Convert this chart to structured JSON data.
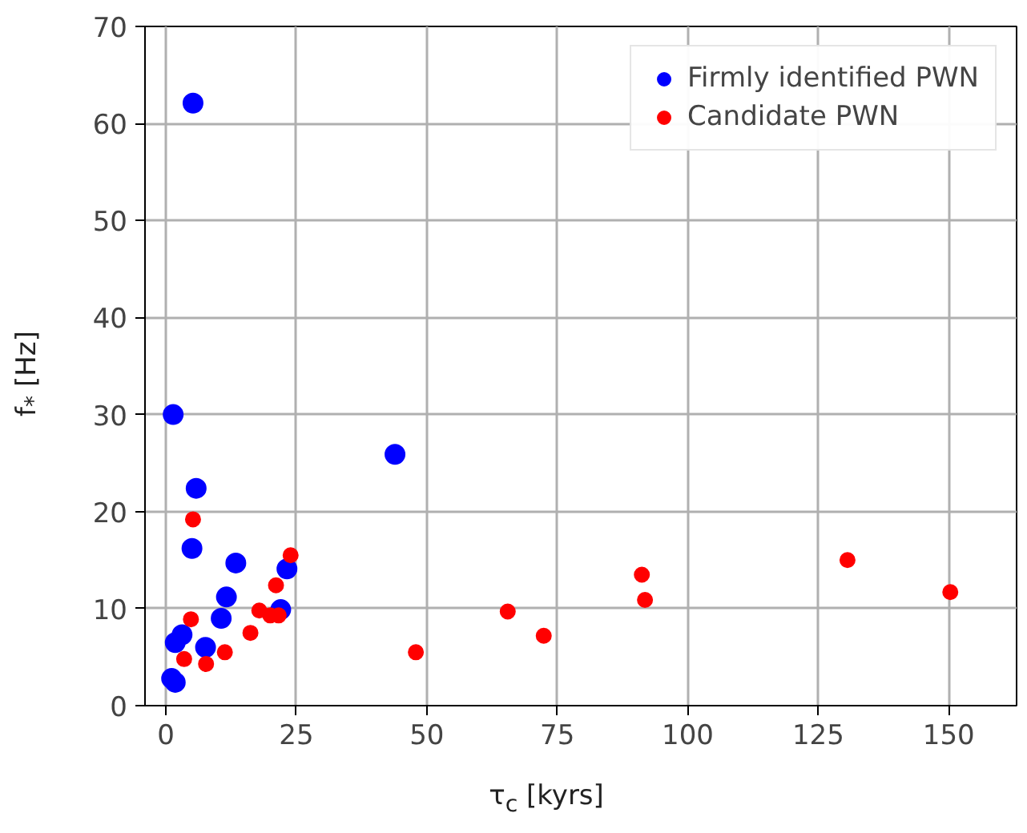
{
  "chart_data": {
    "type": "scatter",
    "xlabel": "τ$_{c}$ [kyrs]",
    "ylabel": "f$_{*}$ [Hz]",
    "xlim": [
      -4,
      163
    ],
    "ylim": [
      0,
      70
    ],
    "xticks": [
      0,
      25,
      50,
      75,
      100,
      125,
      150
    ],
    "yticks": [
      0,
      10,
      20,
      30,
      40,
      50,
      60,
      70
    ],
    "grid": true,
    "legend": "top right",
    "marker": "circle",
    "series": [
      {
        "name": "Firmly identified PWN",
        "color": "#0000ff",
        "x": [
          5.2,
          1.4,
          43.9,
          5.8,
          5.0,
          13.4,
          23.2,
          22.0,
          11.6,
          10.6,
          3.1,
          1.8,
          7.6,
          1.1,
          1.8
        ],
        "values": [
          62.1,
          30.0,
          25.9,
          22.4,
          16.2,
          14.7,
          14.1,
          9.9,
          11.2,
          9.0,
          7.3,
          6.5,
          6.0,
          2.8,
          2.4
        ]
      },
      {
        "name": "Candidate PWN",
        "color": "#ff0000",
        "x": [
          5.2,
          23.9,
          21.1,
          17.9,
          20.0,
          21.6,
          4.8,
          16.2,
          3.5,
          7.7,
          11.3,
          47.9,
          65.5,
          72.4,
          91.2,
          91.8,
          130.6,
          150.3
        ],
        "values": [
          19.2,
          15.5,
          12.4,
          9.8,
          9.3,
          9.3,
          8.9,
          7.5,
          4.8,
          4.3,
          5.5,
          5.5,
          9.7,
          7.2,
          13.5,
          10.9,
          15.0,
          11.7
        ]
      }
    ]
  }
}
